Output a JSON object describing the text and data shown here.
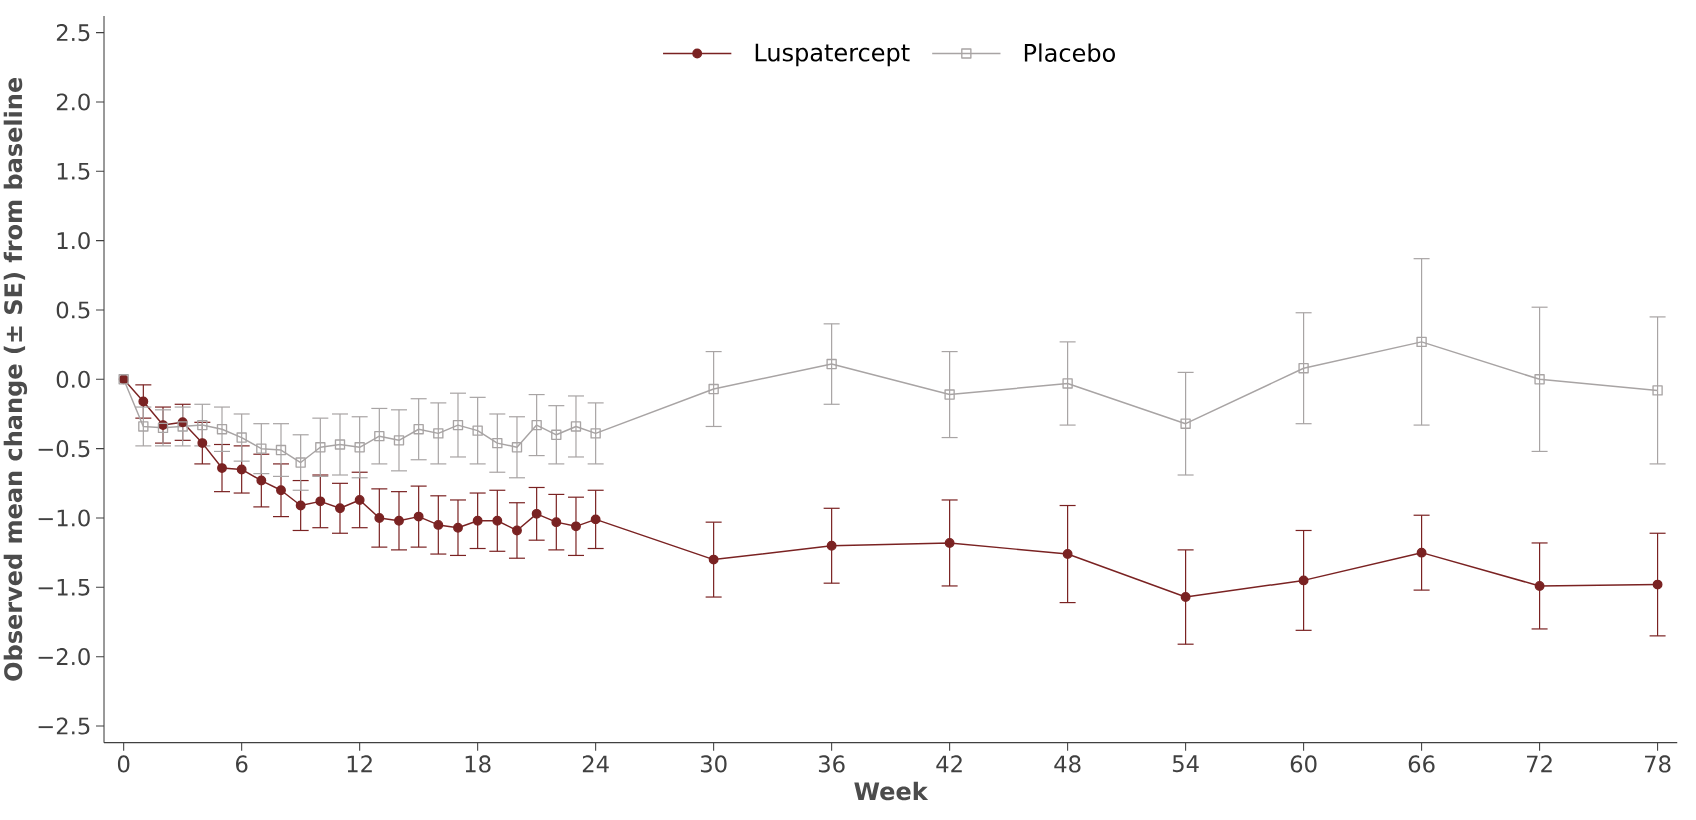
{
  "chart_data": {
    "type": "line",
    "xlabel": "Week",
    "ylabel": "Observed mean change (± SE) from baseline",
    "xlim": [
      -1,
      79
    ],
    "ylim": [
      -2.62,
      2.62
    ],
    "xticks": [
      0,
      6,
      12,
      18,
      24,
      30,
      36,
      42,
      48,
      54,
      60,
      66,
      72,
      78
    ],
    "yticks": [
      {
        "value": -2.5,
        "label": "−2.5"
      },
      {
        "value": -2.0,
        "label": "−2.0"
      },
      {
        "value": -1.5,
        "label": "−1.5"
      },
      {
        "value": -1.0,
        "label": "−1.0"
      },
      {
        "value": -0.5,
        "label": "−0.5"
      },
      {
        "value": 0,
        "label": "0.0"
      },
      {
        "value": 0.5,
        "label": "0.5"
      },
      {
        "value": 1.0,
        "label": "1.0"
      },
      {
        "value": 1.5,
        "label": "1.5"
      },
      {
        "value": 2.0,
        "label": "2.0"
      },
      {
        "value": 2.5,
        "label": "2.5"
      }
    ],
    "x": [
      0,
      1,
      2,
      3,
      4,
      5,
      6,
      7,
      8,
      9,
      10,
      11,
      12,
      13,
      14,
      15,
      16,
      17,
      18,
      19,
      20,
      21,
      22,
      23,
      24,
      30,
      36,
      42,
      48,
      54,
      60,
      66,
      72,
      78
    ],
    "grid": false,
    "legend": "top",
    "line_style": "solid",
    "series": [
      {
        "name": "Luspatercept",
        "color": "#7a2222",
        "marker": "circle",
        "values": [
          0,
          -0.16,
          -0.33,
          -0.31,
          -0.46,
          -0.64,
          -0.65,
          -0.73,
          -0.8,
          -0.91,
          -0.88,
          -0.93,
          -0.87,
          -1.0,
          -1.02,
          -0.99,
          -1.05,
          -1.07,
          -1.02,
          -1.02,
          -1.09,
          -0.97,
          -1.03,
          -1.06,
          -1.01,
          -1.3,
          -1.2,
          -1.18,
          -1.26,
          -1.57,
          -1.45,
          -1.25,
          -1.49,
          -1.48
        ],
        "errors": [
          null,
          0.12,
          0.13,
          0.13,
          0.15,
          0.17,
          0.17,
          0.19,
          0.19,
          0.18,
          0.19,
          0.18,
          0.2,
          0.21,
          0.21,
          0.22,
          0.21,
          0.2,
          0.2,
          0.22,
          0.2,
          0.19,
          0.2,
          0.21,
          0.21,
          0.27,
          0.27,
          0.31,
          0.35,
          0.34,
          0.36,
          0.27,
          0.31,
          0.37
        ]
      },
      {
        "name": "Placebo",
        "color": "#a8a4a4",
        "marker": "square",
        "values": [
          0,
          -0.34,
          -0.35,
          -0.34,
          -0.33,
          -0.36,
          -0.42,
          -0.5,
          -0.51,
          -0.6,
          -0.49,
          -0.47,
          -0.49,
          -0.41,
          -0.44,
          -0.36,
          -0.39,
          -0.33,
          -0.37,
          -0.46,
          -0.49,
          -0.33,
          -0.4,
          -0.34,
          -0.39,
          -0.07,
          0.11,
          -0.11,
          -0.03,
          -0.32,
          0.08,
          0.27,
          0,
          -0.08
        ],
        "errors": [
          null,
          0.14,
          0.13,
          0.14,
          0.15,
          0.16,
          0.17,
          0.18,
          0.19,
          0.2,
          0.21,
          0.22,
          0.22,
          0.2,
          0.22,
          0.22,
          0.22,
          0.23,
          0.24,
          0.21,
          0.22,
          0.22,
          0.21,
          0.22,
          0.22,
          0.27,
          0.29,
          0.31,
          0.3,
          0.37,
          0.4,
          0.6,
          0.52,
          0.53
        ]
      }
    ]
  }
}
